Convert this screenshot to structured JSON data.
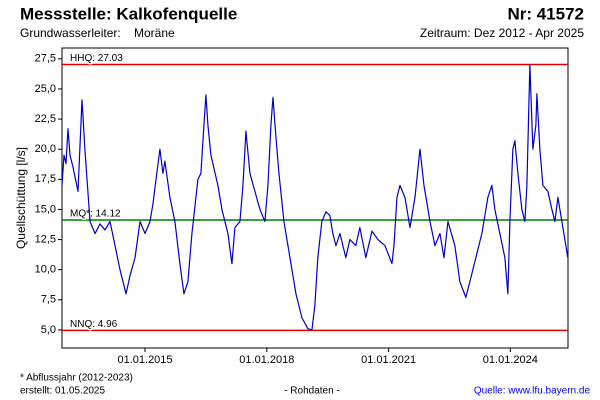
{
  "chart_data": {
    "type": "line",
    "title": "Messstelle: Kalkofenquelle",
    "station_number": "Nr: 41572",
    "aquifer_label": "Grundwasserleiter:",
    "aquifer": "Moräne",
    "period": "Zeitraum: Dez 2012 - Apr 2025",
    "y_label": "Quellschüttung [l/s]",
    "footnote": "* Abflussjahr (2012-2023)",
    "created": "erstellt:  01.05.2025",
    "data_note": "- Rohdaten -",
    "source": "Quelle: www.lfu.bayern.de",
    "color": "#0000c8",
    "xlim": [
      "2012-12-15",
      "2025-06-03"
    ],
    "xticks": [
      {
        "value": "2015-01-01",
        "label": "01.01.2015"
      },
      {
        "value": "2018-01-01",
        "label": "01.01.2018"
      },
      {
        "value": "2021-01-01",
        "label": "01.01.2021"
      },
      {
        "value": "2024-01-01",
        "label": "01.01.2024"
      }
    ],
    "ylim": [
      3.5,
      28.4
    ],
    "yticks": [
      {
        "value": 5,
        "label": "5,0"
      },
      {
        "value": 7.5,
        "label": "7,5"
      },
      {
        "value": 10,
        "label": "10,0"
      },
      {
        "value": 12.5,
        "label": "12,5"
      },
      {
        "value": 15,
        "label": "15,0"
      },
      {
        "value": 17.5,
        "label": "17,5"
      },
      {
        "value": 20,
        "label": "20,0"
      },
      {
        "value": 22.5,
        "label": "22,5"
      },
      {
        "value": 25,
        "label": "25,0"
      },
      {
        "value": 27.5,
        "label": "27,5"
      }
    ],
    "reference_lines": [
      {
        "label": "HHQ: 27.03",
        "value": 27.03,
        "color": "#e00000"
      },
      {
        "label": "MQ*: 14.12",
        "value": 14.12,
        "color": "#008000"
      },
      {
        "label": "NNQ: 4.96",
        "value": 4.96,
        "color": "#e00000"
      }
    ],
    "x": [
      "2012-12-15",
      "2013-01-02",
      "2013-01-20",
      "2013-02-07",
      "2013-02-25",
      "2013-03-24",
      "2013-05-08",
      "2013-06-13",
      "2013-07-09",
      "2013-08-24",
      "2013-10-08",
      "2013-11-22",
      "2014-01-06",
      "2014-02-20",
      "2014-04-06",
      "2014-05-21",
      "2014-07-14",
      "2014-08-19",
      "2014-10-03",
      "2014-11-17",
      "2015-01-01",
      "2015-02-15",
      "2015-03-14",
      "2015-04-10",
      "2015-05-15",
      "2015-06-11",
      "2015-06-29",
      "2015-08-13",
      "2015-09-27",
      "2015-11-11",
      "2015-12-17",
      "2016-01-22",
      "2016-02-27",
      "2016-04-21",
      "2016-05-18",
      "2016-06-14",
      "2016-07-02",
      "2016-07-20",
      "2016-08-16",
      "2016-10-18",
      "2016-11-23",
      "2017-01-16",
      "2017-02-21",
      "2017-03-20",
      "2017-05-04",
      "2017-05-31",
      "2017-06-27",
      "2017-08-02",
      "2017-09-16",
      "2017-10-31",
      "2017-12-15",
      "2018-01-11",
      "2018-02-07",
      "2018-02-25",
      "2018-03-24",
      "2018-04-20",
      "2018-06-04",
      "2018-07-28",
      "2018-09-20",
      "2018-11-13",
      "2019-01-06",
      "2019-02-11",
      "2019-03-09",
      "2019-04-05",
      "2019-05-11",
      "2019-06-17",
      "2019-07-22",
      "2019-08-18",
      "2019-09-15",
      "2019-10-21",
      "2019-12-13",
      "2020-01-18",
      "2020-03-12",
      "2020-04-17",
      "2020-06-10",
      "2020-08-04",
      "2020-09-27",
      "2020-11-29",
      "2021-01-31",
      "2021-02-18",
      "2021-03-17",
      "2021-04-13",
      "2021-05-28",
      "2021-07-12",
      "2021-08-26",
      "2021-10-10",
      "2021-11-15",
      "2022-01-08",
      "2022-02-22",
      "2022-04-08",
      "2022-05-14",
      "2022-06-19",
      "2022-08-20",
      "2022-10-04",
      "2022-11-27",
      "2023-01-02",
      "2023-02-25",
      "2023-04-20",
      "2023-06-13",
      "2023-07-19",
      "2023-08-15",
      "2023-09-29",
      "2023-11-13",
      "2023-12-10",
      "2023-12-28",
      "2024-01-24",
      "2024-02-11",
      "2024-03-09",
      "2024-04-14",
      "2024-05-11",
      "2024-05-29",
      "2024-06-25",
      "2024-07-22",
      "2024-08-18",
      "2024-08-27",
      "2024-09-23",
      "2024-10-20",
      "2024-12-04",
      "2025-01-09",
      "2025-02-05",
      "2025-03-04",
      "2025-03-31",
      "2025-04-27",
      "2025-06-01"
    ],
    "values": [
      17.0,
      19.5,
      18.8,
      21.7,
      19.5,
      18.5,
      16.5,
      24.1,
      20.0,
      14.0,
      13.0,
      13.8,
      13.3,
      14.0,
      12.0,
      10.0,
      8.0,
      9.5,
      11.0,
      14.0,
      13.0,
      14.0,
      15.5,
      17.5,
      20.0,
      18.0,
      19.0,
      16.0,
      14.0,
      10.5,
      8.0,
      9.0,
      13.0,
      17.5,
      18.0,
      22.0,
      24.5,
      22.0,
      19.5,
      17.0,
      15.0,
      13.0,
      10.5,
      13.5,
      14.0,
      17.0,
      21.5,
      18.0,
      16.5,
      15.0,
      14.0,
      17.0,
      22.0,
      24.3,
      21.0,
      18.0,
      14.0,
      11.0,
      8.0,
      6.0,
      5.1,
      5.0,
      7.0,
      11.0,
      14.0,
      14.8,
      14.5,
      13.0,
      12.0,
      13.0,
      11.0,
      12.5,
      12.0,
      13.5,
      11.0,
      13.2,
      12.5,
      12.0,
      10.5,
      12.0,
      16.0,
      17.0,
      16.0,
      13.5,
      16.0,
      20.0,
      17.0,
      14.0,
      12.0,
      13.0,
      11.0,
      14.0,
      12.0,
      9.0,
      7.7,
      9.0,
      11.0,
      13.0,
      16.0,
      17.0,
      15.0,
      13.0,
      11.0,
      8.0,
      14.0,
      20.0,
      20.7,
      18.0,
      15.0,
      14.0,
      17.0,
      27.0,
      20.0,
      22.0,
      24.6,
      20.0,
      17.0,
      16.5,
      15.0,
      14.0,
      16.0,
      14.5,
      13.0,
      11.0
    ]
  }
}
